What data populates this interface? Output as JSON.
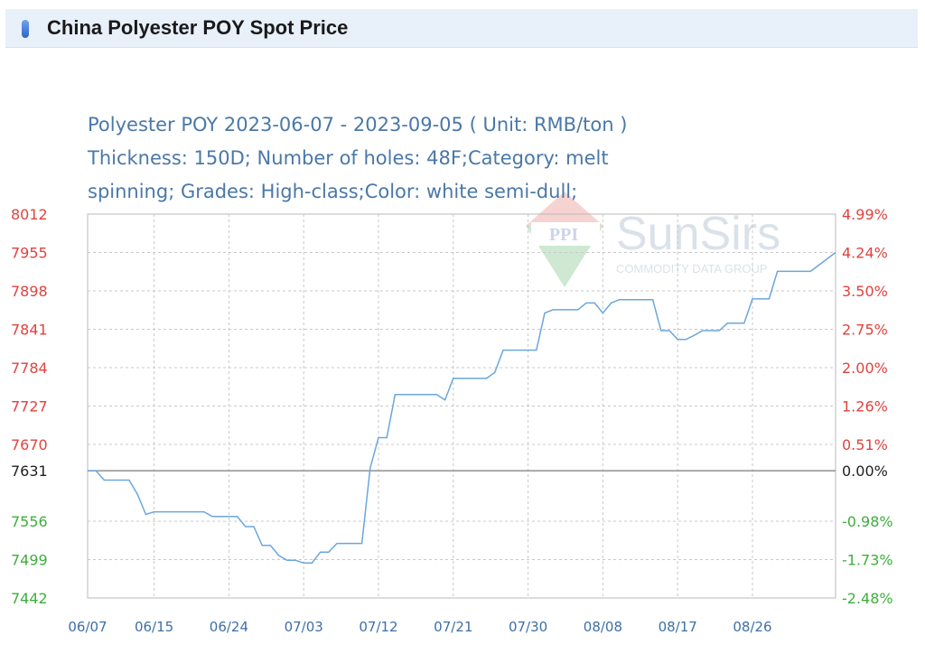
{
  "page": {
    "title": "China Polyester POY Spot Price"
  },
  "colors": {
    "up": "#e0433e",
    "down": "#3fae3c",
    "base": "#222222",
    "line": "#6aa7dc",
    "grid": "#c8c8c8",
    "title": "#4a78a8",
    "xaxis": "#3e6fa6"
  },
  "watermark": {
    "brand": "SunSirs",
    "tagline": "COMMODITY DATA GROUP"
  },
  "chart_data": {
    "type": "line",
    "title_lines": [
      "Polyester POY 2023-06-07 - 2023-09-05    ( Unit: RMB/ton )",
      "Thickness: 150D; Number of holes: 48F;Category: melt",
      "spinning; Grades: High-class;Color: white semi-dull;"
    ],
    "base_value": 7631,
    "ylim": [
      7442,
      8012
    ],
    "y_ticks_left": [
      {
        "value": 8012,
        "label": "8012"
      },
      {
        "value": 7955,
        "label": "7955"
      },
      {
        "value": 7898,
        "label": "7898"
      },
      {
        "value": 7841,
        "label": "7841"
      },
      {
        "value": 7784,
        "label": "7784"
      },
      {
        "value": 7727,
        "label": "7727"
      },
      {
        "value": 7670,
        "label": "7670"
      },
      {
        "value": 7631,
        "label": "7631"
      },
      {
        "value": 7556,
        "label": "7556"
      },
      {
        "value": 7499,
        "label": "7499"
      },
      {
        "value": 7442,
        "label": "7442"
      }
    ],
    "y_ticks_right": [
      {
        "value": 8012,
        "label": "4.99%"
      },
      {
        "value": 7955,
        "label": "4.24%"
      },
      {
        "value": 7898,
        "label": "3.50%"
      },
      {
        "value": 7841,
        "label": "2.75%"
      },
      {
        "value": 7784,
        "label": "2.00%"
      },
      {
        "value": 7727,
        "label": "1.26%"
      },
      {
        "value": 7670,
        "label": "0.51%"
      },
      {
        "value": 7631,
        "label": "0.00%"
      },
      {
        "value": 7556,
        "label": "-0.98%"
      },
      {
        "value": 7499,
        "label": "-1.73%"
      },
      {
        "value": 7442,
        "label": "-2.48%"
      }
    ],
    "x_ticks": [
      "06/07",
      "06/15",
      "06/24",
      "07/03",
      "07/12",
      "07/21",
      "07/30",
      "08/08",
      "08/17",
      "08/26"
    ],
    "x_range": [
      "2023-06-07",
      "2023-09-05"
    ],
    "grid": true,
    "series": [
      {
        "points": [
          [
            "2023-06-07",
            7631
          ],
          [
            "2023-06-08",
            7631
          ],
          [
            "2023-06-09",
            7617
          ],
          [
            "2023-06-12",
            7617
          ],
          [
            "2023-06-13",
            7596
          ],
          [
            "2023-06-14",
            7566
          ],
          [
            "2023-06-15",
            7570
          ],
          [
            "2023-06-21",
            7570
          ],
          [
            "2023-06-22",
            7563
          ],
          [
            "2023-06-25",
            7563
          ],
          [
            "2023-06-26",
            7548
          ],
          [
            "2023-06-27",
            7548
          ],
          [
            "2023-06-28",
            7520
          ],
          [
            "2023-06-29",
            7520
          ],
          [
            "2023-06-30",
            7505
          ],
          [
            "2023-07-01",
            7498
          ],
          [
            "2023-07-02",
            7498
          ],
          [
            "2023-07-03",
            7494
          ],
          [
            "2023-07-04",
            7494
          ],
          [
            "2023-07-05",
            7510
          ],
          [
            "2023-07-06",
            7510
          ],
          [
            "2023-07-07",
            7523
          ],
          [
            "2023-07-10",
            7523
          ],
          [
            "2023-07-11",
            7635
          ],
          [
            "2023-07-12",
            7680
          ],
          [
            "2023-07-13",
            7680
          ],
          [
            "2023-07-14",
            7744
          ],
          [
            "2023-07-19",
            7744
          ],
          [
            "2023-07-20",
            7736
          ],
          [
            "2023-07-21",
            7768
          ],
          [
            "2023-07-25",
            7768
          ],
          [
            "2023-07-26",
            7777
          ],
          [
            "2023-07-27",
            7810
          ],
          [
            "2023-07-31",
            7810
          ],
          [
            "2023-08-01",
            7865
          ],
          [
            "2023-08-02",
            7870
          ],
          [
            "2023-08-05",
            7870
          ],
          [
            "2023-08-06",
            7880
          ],
          [
            "2023-08-07",
            7880
          ],
          [
            "2023-08-08",
            7865
          ],
          [
            "2023-08-09",
            7880
          ],
          [
            "2023-08-10",
            7885
          ],
          [
            "2023-08-14",
            7885
          ],
          [
            "2023-08-15",
            7839
          ],
          [
            "2023-08-16",
            7839
          ],
          [
            "2023-08-17",
            7826
          ],
          [
            "2023-08-18",
            7826
          ],
          [
            "2023-08-19",
            7832
          ],
          [
            "2023-08-20",
            7839
          ],
          [
            "2023-08-22",
            7839
          ],
          [
            "2023-08-23",
            7850
          ],
          [
            "2023-08-25",
            7850
          ],
          [
            "2023-08-26",
            7886
          ],
          [
            "2023-08-28",
            7886
          ],
          [
            "2023-08-29",
            7927
          ],
          [
            "2023-09-02",
            7927
          ],
          [
            "2023-09-05",
            7955
          ]
        ]
      }
    ]
  }
}
